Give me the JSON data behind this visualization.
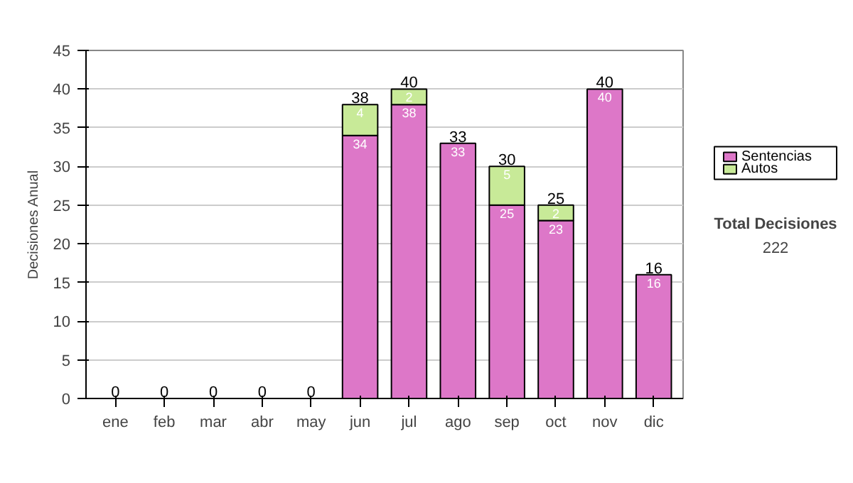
{
  "chart_data": {
    "type": "bar",
    "stacked": true,
    "ylabel": "Decisiones Anual",
    "categories": [
      "ene",
      "feb",
      "mar",
      "abr",
      "may",
      "jun",
      "jul",
      "ago",
      "sep",
      "oct",
      "nov",
      "dic"
    ],
    "series": [
      {
        "name": "Sentencias",
        "color": "#dd77c8",
        "values": [
          0,
          0,
          0,
          0,
          0,
          34,
          38,
          33,
          25,
          23,
          40,
          16
        ],
        "value_labels": [
          null,
          null,
          null,
          null,
          null,
          "34",
          "38",
          "33",
          "25",
          "23",
          "40",
          "16"
        ]
      },
      {
        "name": "Autos",
        "color": "#c8ea98",
        "values": [
          0,
          0,
          0,
          0,
          0,
          4,
          2,
          0,
          5,
          2,
          0,
          0
        ],
        "value_labels": [
          null,
          null,
          null,
          null,
          null,
          "4",
          "2",
          null,
          "5",
          "2",
          null,
          null
        ]
      }
    ],
    "totals": [
      "0",
      "0",
      "0",
      "0",
      "0",
      "38",
      "40",
      "33",
      "30",
      "25",
      "40",
      "16"
    ],
    "ylim": [
      0,
      45
    ],
    "yticks": [
      0,
      5,
      10,
      15,
      20,
      25,
      30,
      35,
      40,
      45
    ],
    "grid": "y",
    "legend": "right",
    "annotations": [
      "Total Decisiones",
      "222"
    ]
  }
}
